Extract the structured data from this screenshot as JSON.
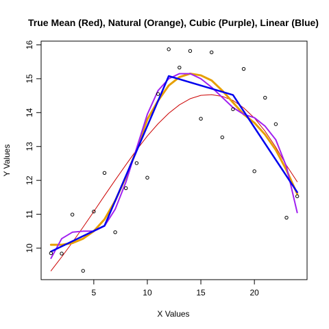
{
  "chart_data": {
    "type": "scatter",
    "title": "True Mean (Red), Natural (Orange), Cubic (Purple), Linear (Blue)",
    "xlabel": "X Values",
    "ylabel": "Y Values",
    "xlim": [
      0.08,
      24.92
    ],
    "ylim": [
      9.07,
      16.11
    ],
    "xticks": [
      5,
      10,
      15,
      20
    ],
    "yticks": [
      10,
      11,
      12,
      13,
      14,
      15,
      16
    ],
    "grid": false,
    "points": {
      "x": [
        1,
        2,
        3,
        4,
        5,
        6,
        7,
        8,
        9,
        10,
        11,
        12,
        13,
        14,
        15,
        16,
        17,
        18,
        19,
        20,
        21,
        22,
        23,
        24
      ],
      "y": [
        9.85,
        9.84,
        10.99,
        9.33,
        11.08,
        12.22,
        10.47,
        11.77,
        12.51,
        12.08,
        14.55,
        15.87,
        15.33,
        15.82,
        13.82,
        15.78,
        13.27,
        14.1,
        15.29,
        12.27,
        14.44,
        13.66,
        10.9,
        11.53
      ]
    },
    "series": [
      {
        "color": "#cc0000",
        "line_width": 1,
        "x": [
          1,
          2,
          3,
          4,
          5,
          6,
          7,
          8,
          9,
          10,
          11,
          12,
          13,
          14,
          15,
          16,
          17,
          18,
          19,
          20,
          21,
          22,
          23,
          24
        ],
        "y": [
          9.33,
          9.74,
          10.17,
          10.62,
          11.08,
          11.55,
          12.01,
          12.46,
          12.9,
          13.31,
          13.67,
          13.98,
          14.23,
          14.41,
          14.51,
          14.53,
          14.48,
          14.36,
          14.14,
          13.84,
          13.45,
          12.98,
          12.44,
          11.96
        ]
      },
      {
        "color": "#e69f00",
        "line_width": 3,
        "x": [
          1,
          2,
          3,
          4,
          5,
          6,
          7,
          8,
          9,
          10,
          11,
          12,
          13,
          14,
          15,
          16,
          17,
          18,
          19,
          20,
          21,
          22,
          23,
          24
        ],
        "y": [
          10.1,
          10.1,
          10.15,
          10.28,
          10.5,
          10.85,
          11.4,
          12.1,
          12.9,
          13.8,
          14.35,
          14.8,
          15.05,
          15.15,
          15.1,
          14.95,
          14.65,
          14.3,
          13.95,
          13.7,
          13.35,
          12.9,
          12.3,
          11.6
        ]
      },
      {
        "color": "#a020f0",
        "line_width": 2,
        "x": [
          1,
          2,
          3,
          4,
          5,
          6,
          7,
          8,
          9,
          10,
          11,
          12,
          13,
          14,
          15,
          16,
          17,
          18,
          19,
          20,
          21,
          22,
          23,
          24
        ],
        "y": [
          9.7,
          10.28,
          10.47,
          10.5,
          10.5,
          10.65,
          11.15,
          11.95,
          12.95,
          13.95,
          14.65,
          15.0,
          15.15,
          15.15,
          15.0,
          14.75,
          14.45,
          14.15,
          13.95,
          13.85,
          13.6,
          13.2,
          12.4,
          11.05
        ]
      },
      {
        "color": "#0000ee",
        "line_width": 2.5,
        "x": [
          1,
          6,
          12,
          18,
          24
        ],
        "y": [
          9.9,
          10.66,
          15.08,
          14.52,
          11.65
        ]
      }
    ]
  }
}
